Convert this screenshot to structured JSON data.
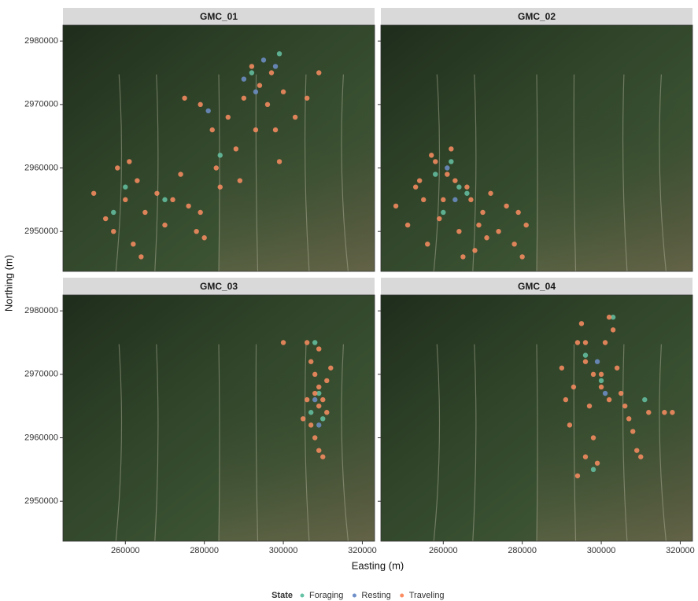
{
  "chart_data": {
    "type": "scatter",
    "xlabel": "Easting (m)",
    "ylabel": "Northing (m)",
    "legend_title": "State",
    "legend_position": "bottom",
    "states": [
      {
        "name": "Foraging",
        "color": "#66c2a5"
      },
      {
        "name": "Resting",
        "color": "#6f8fc9"
      },
      {
        "name": "Traveling",
        "color": "#fc8d62"
      }
    ],
    "xlim": [
      244200,
      323100
    ],
    "ylim": [
      2943700,
      2982500
    ],
    "xticks": [
      260000,
      280000,
      300000,
      320000
    ],
    "yticks": [
      2950000,
      2960000,
      2970000,
      2980000
    ],
    "panels": [
      {
        "title": "GMC_01",
        "series": [
          {
            "x": [
              260000,
              270000,
              292000,
              299000,
              284000,
              257000
            ],
            "y": [
              2957000,
              2955000,
              2975000,
              2978000,
              2962000,
              2953000
            ]
          },
          {
            "x": [
              281000,
              290000,
              295000,
              298000,
              293000
            ],
            "y": [
              2969000,
              2974000,
              2977000,
              2976000,
              2972000
            ]
          },
          {
            "x": [
              252000,
              255000,
              258000,
              260000,
              262000,
              263000,
              265000,
              268000,
              270000,
              272000,
              274000,
              276000,
              278000,
              279000,
              280000,
              257000,
              261000,
              264000,
              283000,
              284000,
              282000,
              286000,
              288000,
              290000,
              292000,
              294000,
              296000,
              298000,
              300000,
              303000,
              306000,
              309000,
              275000,
              279000,
              289000,
              293000,
              297000,
              299000
            ],
            "y": [
              2956000,
              2952000,
              2960000,
              2955000,
              2948000,
              2958000,
              2953000,
              2956000,
              2951000,
              2955000,
              2959000,
              2954000,
              2950000,
              2953000,
              2949000,
              2950000,
              2961000,
              2946000,
              2960000,
              2957000,
              2966000,
              2968000,
              2963000,
              2971000,
              2976000,
              2973000,
              2970000,
              2966000,
              2972000,
              2968000,
              2971000,
              2975000,
              2971000,
              2970000,
              2958000,
              2966000,
              2975000,
              2961000
            ]
          }
        ]
      },
      {
        "title": "GMC_02",
        "series": [
          {
            "x": [
              258000,
              262000,
              266000,
              260000,
              264000
            ],
            "y": [
              2959000,
              2961000,
              2956000,
              2953000,
              2957000
            ]
          },
          {
            "x": [
              261000,
              263000
            ],
            "y": [
              2960000,
              2955000
            ]
          },
          {
            "x": [
              248000,
              251000,
              254000,
              256000,
              258000,
              260000,
              262000,
              264000,
              266000,
              268000,
              270000,
              272000,
              274000,
              276000,
              278000,
              280000,
              281000,
              255000,
              259000,
              263000,
              267000,
              271000,
              261000,
              257000,
              265000,
              279000,
              253000,
              269000
            ],
            "y": [
              2954000,
              2951000,
              2958000,
              2948000,
              2961000,
              2955000,
              2963000,
              2950000,
              2957000,
              2947000,
              2953000,
              2956000,
              2950000,
              2954000,
              2948000,
              2946000,
              2951000,
              2955000,
              2952000,
              2958000,
              2955000,
              2949000,
              2959000,
              2962000,
              2946000,
              2953000,
              2957000,
              2951000
            ]
          }
        ]
      },
      {
        "title": "GMC_03",
        "series": [
          {
            "x": [
              307000,
              309000,
              310000,
              308000
            ],
            "y": [
              2964000,
              2967000,
              2963000,
              2975000
            ]
          },
          {
            "x": [
              308000,
              309000
            ],
            "y": [
              2966000,
              2962000
            ]
          },
          {
            "x": [
              306000,
              307000,
              308000,
              309000,
              310000,
              311000,
              307000,
              308000,
              309000,
              310000,
              306000,
              309000,
              311000,
              308000,
              309000,
              312000,
              300000,
              305000
            ],
            "y": [
              2975000,
              2972000,
              2970000,
              2968000,
              2966000,
              2964000,
              2962000,
              2960000,
              2958000,
              2957000,
              2966000,
              2965000,
              2969000,
              2967000,
              2974000,
              2971000,
              2975000,
              2963000
            ]
          }
        ]
      },
      {
        "title": "GMC_04",
        "series": [
          {
            "x": [
              298000,
              300000,
              303000,
              296000,
              311000
            ],
            "y": [
              2955000,
              2969000,
              2979000,
              2973000,
              2966000
            ]
          },
          {
            "x": [
              299000,
              301000
            ],
            "y": [
              2972000,
              2967000
            ]
          },
          {
            "x": [
              290000,
              291000,
              292000,
              293000,
              294000,
              295000,
              296000,
              297000,
              298000,
              299000,
              300000,
              301000,
              302000,
              303000,
              304000,
              305000,
              306000,
              307000,
              308000,
              309000,
              310000,
              312000,
              316000,
              318000,
              296000,
              294000,
              298000,
              300000,
              302000,
              296000
            ],
            "y": [
              2971000,
              2966000,
              2962000,
              2968000,
              2975000,
              2978000,
              2972000,
              2965000,
              2960000,
              2956000,
              2970000,
              2975000,
              2979000,
              2977000,
              2971000,
              2967000,
              2965000,
              2963000,
              2961000,
              2958000,
              2957000,
              2964000,
              2964000,
              2964000,
              2957000,
              2954000,
              2970000,
              2968000,
              2966000,
              2975000
            ]
          }
        ]
      }
    ]
  }
}
